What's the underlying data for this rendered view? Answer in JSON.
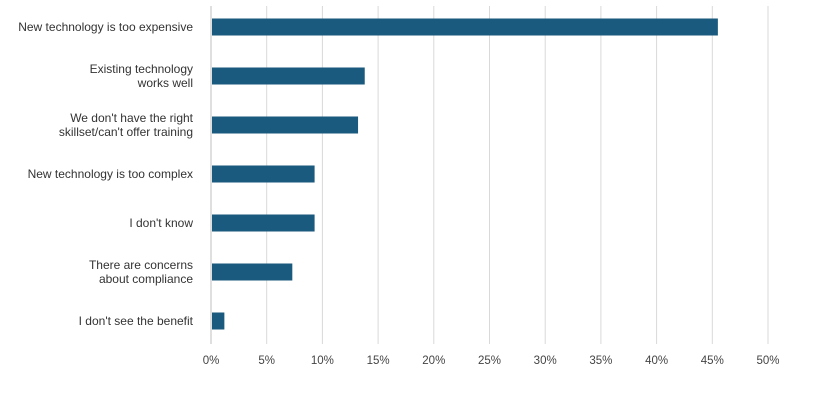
{
  "chart_data": {
    "type": "bar",
    "orientation": "horizontal",
    "title": "",
    "xlabel": "",
    "ylabel": "",
    "categories": [
      [
        "New technology is too expensive"
      ],
      [
        "Existing technology",
        "works well"
      ],
      [
        "We don't have the right",
        "skillset/can't offer training"
      ],
      [
        "New technology is too complex"
      ],
      [
        "I don't know"
      ],
      [
        "There are concerns",
        "about compliance"
      ],
      [
        "I don't see the benefit"
      ]
    ],
    "values": [
      45.5,
      13.8,
      13.2,
      9.3,
      9.3,
      7.3,
      1.2
    ],
    "xlim": [
      0,
      50
    ],
    "ticks": [
      0,
      5,
      10,
      15,
      20,
      25,
      30,
      35,
      40,
      45,
      50
    ],
    "tick_labels": [
      "0%",
      "5%",
      "10%",
      "15%",
      "20%",
      "25%",
      "30%",
      "35%",
      "40%",
      "45%",
      "50%"
    ],
    "grid": "vertical",
    "legend": "none",
    "colors": {
      "bar": "#1a5a7e",
      "grid": "#d9d9d9",
      "text": "#333333"
    }
  }
}
